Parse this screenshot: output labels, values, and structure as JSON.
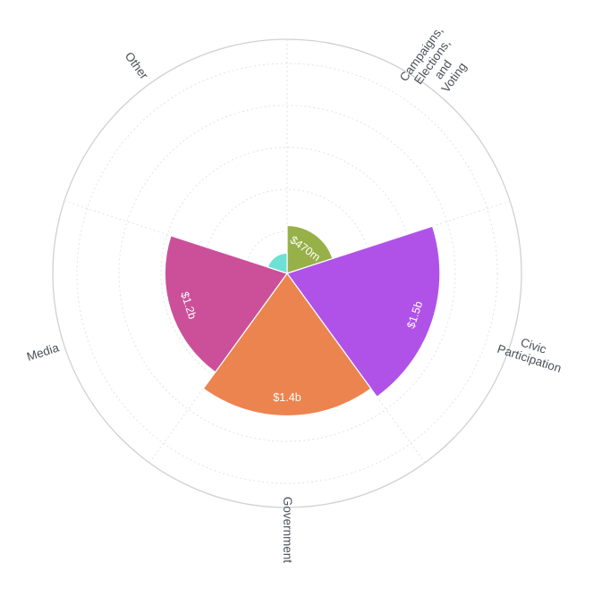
{
  "chart_data": {
    "type": "polar-area",
    "title": "",
    "max_value": 2300,
    "grid": true,
    "slices": [
      {
        "category": "Campaigns, Elections, and Voting",
        "category_lines": [
          "Campaigns,",
          "Elections,",
          "and",
          "Voting"
        ],
        "value": 470,
        "value_label": "$470m",
        "color": "#98b048"
      },
      {
        "category": "Civic Participation",
        "category_lines": [
          "Civic",
          "Participation"
        ],
        "value": 1500,
        "value_label": "$1.5b",
        "color": "#b052e8"
      },
      {
        "category": "Government",
        "category_lines": [
          "Government"
        ],
        "value": 1400,
        "value_label": "$1.4b",
        "color": "#ec844f"
      },
      {
        "category": "Media",
        "category_lines": [
          "Media"
        ],
        "value": 1200,
        "value_label": "$1.2b",
        "color": "#cb5099"
      },
      {
        "category": "Other",
        "category_lines": [
          "Other"
        ],
        "value": 200,
        "value_label": "",
        "color": "#6fe0d6"
      }
    ]
  }
}
